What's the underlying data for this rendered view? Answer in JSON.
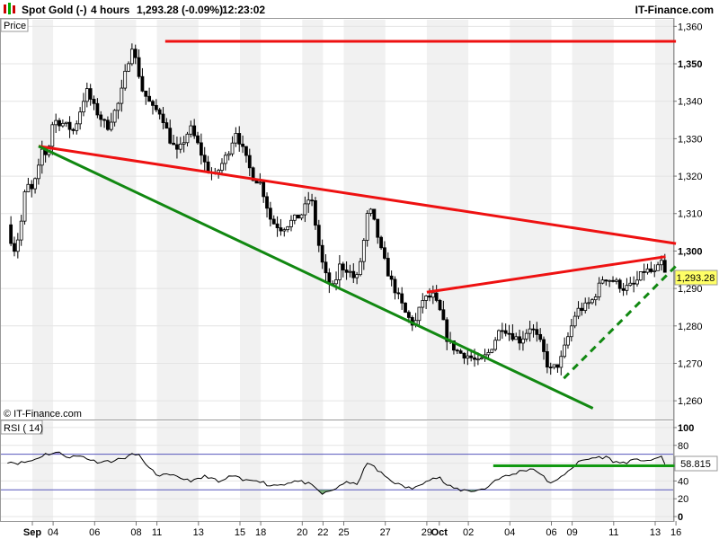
{
  "header": {
    "instrument": "Spot Gold (-)",
    "timeframe": "4 hours",
    "quote": "1,293.28 (-0.09%)",
    "time": "12:23:02",
    "brand": "IT-Finance.com"
  },
  "panels": {
    "price_label": "Price",
    "rsi_label": "RSI ( 14)",
    "watermark": "© IT-Finance.com",
    "last_price_tag": "1,293.28",
    "last_rsi_tag": "58.815"
  },
  "chart_data": [
    {
      "type": "candlestick",
      "ylim": [
        1255,
        1362
      ],
      "y_ticks": [
        {
          "value": 1260,
          "label": "1,260",
          "bold": false
        },
        {
          "value": 1270,
          "label": "1,270",
          "bold": false
        },
        {
          "value": 1280,
          "label": "1,280",
          "bold": false
        },
        {
          "value": 1290,
          "label": "1,290",
          "bold": false
        },
        {
          "value": 1300,
          "label": "1,300",
          "bold": true
        },
        {
          "value": 1310,
          "label": "1,310",
          "bold": false
        },
        {
          "value": 1320,
          "label": "1,320",
          "bold": false
        },
        {
          "value": 1330,
          "label": "1,330",
          "bold": false
        },
        {
          "value": 1340,
          "label": "1,340",
          "bold": false
        },
        {
          "value": 1350,
          "label": "1,350",
          "bold": true
        },
        {
          "value": 1360,
          "label": "1,360",
          "bold": false
        }
      ],
      "x_ticks": [
        {
          "day": 0,
          "label": "Sep",
          "bold": true
        },
        {
          "day": 1,
          "label": "04",
          "bold": false
        },
        {
          "day": 3,
          "label": "06",
          "bold": false
        },
        {
          "day": 5,
          "label": "08",
          "bold": false
        },
        {
          "day": 6,
          "label": "11",
          "bold": false
        },
        {
          "day": 8,
          "label": "13",
          "bold": false
        },
        {
          "day": 10,
          "label": "15",
          "bold": false
        },
        {
          "day": 11,
          "label": "18",
          "bold": false
        },
        {
          "day": 13,
          "label": "20",
          "bold": false
        },
        {
          "day": 14,
          "label": "22",
          "bold": false
        },
        {
          "day": 15,
          "label": "25",
          "bold": false
        },
        {
          "day": 17,
          "label": "27",
          "bold": false
        },
        {
          "day": 19,
          "label": "29",
          "bold": false
        },
        {
          "day": 19.6,
          "label": "Oct",
          "bold": true
        },
        {
          "day": 21,
          "label": "02",
          "bold": false
        },
        {
          "day": 23,
          "label": "04",
          "bold": false
        },
        {
          "day": 25,
          "label": "06",
          "bold": false
        },
        {
          "day": 26,
          "label": "09",
          "bold": false
        },
        {
          "day": 28,
          "label": "11",
          "bold": false
        },
        {
          "day": 30,
          "label": "13",
          "bold": false
        },
        {
          "day": 31,
          "label": "16",
          "bold": false
        }
      ],
      "close_path": [
        {
          "day": -1.2,
          "close": 1307
        },
        {
          "day": -0.9,
          "close": 1300
        },
        {
          "day": -0.6,
          "close": 1305
        },
        {
          "day": -0.3,
          "close": 1318
        },
        {
          "day": 0,
          "close": 1316
        },
        {
          "day": 0.3,
          "close": 1322
        },
        {
          "day": 0.5,
          "close": 1328
        },
        {
          "day": 0.7,
          "close": 1325
        },
        {
          "day": 1.0,
          "close": 1335
        },
        {
          "day": 1.5,
          "close": 1334
        },
        {
          "day": 2.0,
          "close": 1332
        },
        {
          "day": 2.6,
          "close": 1343
        },
        {
          "day": 3.0,
          "close": 1338
        },
        {
          "day": 3.6,
          "close": 1333
        },
        {
          "day": 4.2,
          "close": 1340
        },
        {
          "day": 4.5,
          "close": 1348
        },
        {
          "day": 4.8,
          "close": 1355
        },
        {
          "day": 5.1,
          "close": 1348
        },
        {
          "day": 5.3,
          "close": 1343
        },
        {
          "day": 5.8,
          "close": 1338
        },
        {
          "day": 6.2,
          "close": 1337
        },
        {
          "day": 6.6,
          "close": 1330
        },
        {
          "day": 7.0,
          "close": 1326
        },
        {
          "day": 7.6,
          "close": 1333
        },
        {
          "day": 8.0,
          "close": 1328
        },
        {
          "day": 8.4,
          "close": 1322
        },
        {
          "day": 8.8,
          "close": 1320
        },
        {
          "day": 9.4,
          "close": 1326
        },
        {
          "day": 9.8,
          "close": 1332
        },
        {
          "day": 10.2,
          "close": 1326
        },
        {
          "day": 10.6,
          "close": 1320
        },
        {
          "day": 11.0,
          "close": 1318
        },
        {
          "day": 11.5,
          "close": 1308
        },
        {
          "day": 12.0,
          "close": 1306
        },
        {
          "day": 12.5,
          "close": 1308
        },
        {
          "day": 13.0,
          "close": 1310
        },
        {
          "day": 13.4,
          "close": 1315
        },
        {
          "day": 13.7,
          "close": 1305
        },
        {
          "day": 13.9,
          "close": 1298
        },
        {
          "day": 14.2,
          "close": 1292
        },
        {
          "day": 14.5,
          "close": 1290
        },
        {
          "day": 14.8,
          "close": 1296
        },
        {
          "day": 15.2,
          "close": 1295
        },
        {
          "day": 15.6,
          "close": 1292
        },
        {
          "day": 15.9,
          "close": 1300
        },
        {
          "day": 16.2,
          "close": 1312
        },
        {
          "day": 16.5,
          "close": 1307
        },
        {
          "day": 16.8,
          "close": 1300
        },
        {
          "day": 17.2,
          "close": 1293
        },
        {
          "day": 17.6,
          "close": 1288
        },
        {
          "day": 18.0,
          "close": 1283
        },
        {
          "day": 18.4,
          "close": 1280
        },
        {
          "day": 18.8,
          "close": 1287
        },
        {
          "day": 19.3,
          "close": 1288
        },
        {
          "day": 19.7,
          "close": 1283
        },
        {
          "day": 20.0,
          "close": 1276
        },
        {
          "day": 20.5,
          "close": 1273
        },
        {
          "day": 21.0,
          "close": 1272
        },
        {
          "day": 21.5,
          "close": 1270
        },
        {
          "day": 22.0,
          "close": 1273
        },
        {
          "day": 22.6,
          "close": 1280
        },
        {
          "day": 23.0,
          "close": 1278
        },
        {
          "day": 23.5,
          "close": 1276
        },
        {
          "day": 24.0,
          "close": 1280
        },
        {
          "day": 24.5,
          "close": 1275
        },
        {
          "day": 24.9,
          "close": 1268
        },
        {
          "day": 25.4,
          "close": 1270
        },
        {
          "day": 25.8,
          "close": 1277
        },
        {
          "day": 26.2,
          "close": 1284
        },
        {
          "day": 26.6,
          "close": 1285
        },
        {
          "day": 27.0,
          "close": 1287
        },
        {
          "day": 27.5,
          "close": 1293
        },
        {
          "day": 28.0,
          "close": 1292
        },
        {
          "day": 28.5,
          "close": 1290
        },
        {
          "day": 29.0,
          "close": 1291
        },
        {
          "day": 29.5,
          "close": 1295
        },
        {
          "day": 30.0,
          "close": 1294
        },
        {
          "day": 30.3,
          "close": 1297
        },
        {
          "day": 30.5,
          "close": 1293.28
        }
      ],
      "trendlines": [
        {
          "name": "resistance-top",
          "color": "#ee1111",
          "style": "solid",
          "points": [
            [
              6.4,
              1356
            ],
            [
              31.0,
              1356
            ]
          ]
        },
        {
          "name": "upper-trend",
          "color": "#ee1111",
          "style": "solid",
          "points": [
            [
              0.3,
              1328
            ],
            [
              31.0,
              1302
            ]
          ]
        },
        {
          "name": "lower-trend",
          "color": "#118811",
          "style": "solid",
          "points": [
            [
              0.3,
              1328
            ],
            [
              27.0,
              1258
            ]
          ]
        },
        {
          "name": "rising-wedge-upper",
          "color": "#ee1111",
          "style": "solid",
          "points": [
            [
              19.0,
              1289
            ],
            [
              30.5,
              1298.5
            ]
          ]
        },
        {
          "name": "rising-support",
          "color": "#118811",
          "style": "dashed",
          "points": [
            [
              25.6,
              1266
            ],
            [
              31.0,
              1296
            ]
          ]
        }
      ]
    },
    {
      "type": "line",
      "name": "RSI ( 14)",
      "ylim": [
        -5,
        108
      ],
      "y_ticks": [
        {
          "value": 0,
          "label": "0"
        },
        {
          "value": 20,
          "label": "20"
        },
        {
          "value": 40,
          "label": "40"
        },
        {
          "value": 60,
          "label": "60"
        },
        {
          "value": 80,
          "label": "80"
        },
        {
          "value": 100,
          "label": "100"
        }
      ],
      "reference_levels": [
        70,
        30
      ],
      "series": [
        {
          "day": -1.2,
          "v": 62
        },
        {
          "day": -0.6,
          "v": 60
        },
        {
          "day": 0,
          "v": 63
        },
        {
          "day": 0.6,
          "v": 70
        },
        {
          "day": 1.2,
          "v": 72
        },
        {
          "day": 1.8,
          "v": 67
        },
        {
          "day": 2.4,
          "v": 68
        },
        {
          "day": 3.0,
          "v": 62
        },
        {
          "day": 3.6,
          "v": 62
        },
        {
          "day": 4.2,
          "v": 64
        },
        {
          "day": 4.6,
          "v": 68
        },
        {
          "day": 5.0,
          "v": 70
        },
        {
          "day": 5.3,
          "v": 66
        },
        {
          "day": 5.5,
          "v": 56
        },
        {
          "day": 6.0,
          "v": 47
        },
        {
          "day": 6.6,
          "v": 46
        },
        {
          "day": 7.2,
          "v": 43
        },
        {
          "day": 7.8,
          "v": 40
        },
        {
          "day": 8.4,
          "v": 46
        },
        {
          "day": 9.0,
          "v": 38
        },
        {
          "day": 9.6,
          "v": 46
        },
        {
          "day": 10.2,
          "v": 40
        },
        {
          "day": 10.8,
          "v": 42
        },
        {
          "day": 11.4,
          "v": 35
        },
        {
          "day": 12.0,
          "v": 36
        },
        {
          "day": 12.6,
          "v": 40
        },
        {
          "day": 13.2,
          "v": 38
        },
        {
          "day": 13.6,
          "v": 32
        },
        {
          "day": 14.0,
          "v": 25
        },
        {
          "day": 14.5,
          "v": 30
        },
        {
          "day": 15.0,
          "v": 38
        },
        {
          "day": 15.6,
          "v": 36
        },
        {
          "day": 16.2,
          "v": 62
        },
        {
          "day": 16.6,
          "v": 52
        },
        {
          "day": 17.2,
          "v": 42
        },
        {
          "day": 17.8,
          "v": 34
        },
        {
          "day": 18.4,
          "v": 31
        },
        {
          "day": 19.0,
          "v": 42
        },
        {
          "day": 19.6,
          "v": 44
        },
        {
          "day": 20.0,
          "v": 34
        },
        {
          "day": 20.6,
          "v": 30
        },
        {
          "day": 21.2,
          "v": 29
        },
        {
          "day": 21.8,
          "v": 31
        },
        {
          "day": 22.4,
          "v": 43
        },
        {
          "day": 23.0,
          "v": 46
        },
        {
          "day": 23.6,
          "v": 52
        },
        {
          "day": 24.2,
          "v": 54
        },
        {
          "day": 24.8,
          "v": 40
        },
        {
          "day": 25.2,
          "v": 38
        },
        {
          "day": 25.8,
          "v": 52
        },
        {
          "day": 26.4,
          "v": 62
        },
        {
          "day": 27.0,
          "v": 66
        },
        {
          "day": 27.6,
          "v": 67
        },
        {
          "day": 28.2,
          "v": 60
        },
        {
          "day": 28.8,
          "v": 62
        },
        {
          "day": 29.4,
          "v": 64
        },
        {
          "day": 30.0,
          "v": 63
        },
        {
          "day": 30.3,
          "v": 68
        },
        {
          "day": 30.5,
          "v": 58.815
        }
      ],
      "trendline": {
        "name": "rsi-support",
        "color": "#119911",
        "points": [
          [
            22.2,
            57
          ],
          [
            31.0,
            57
          ]
        ]
      }
    }
  ]
}
